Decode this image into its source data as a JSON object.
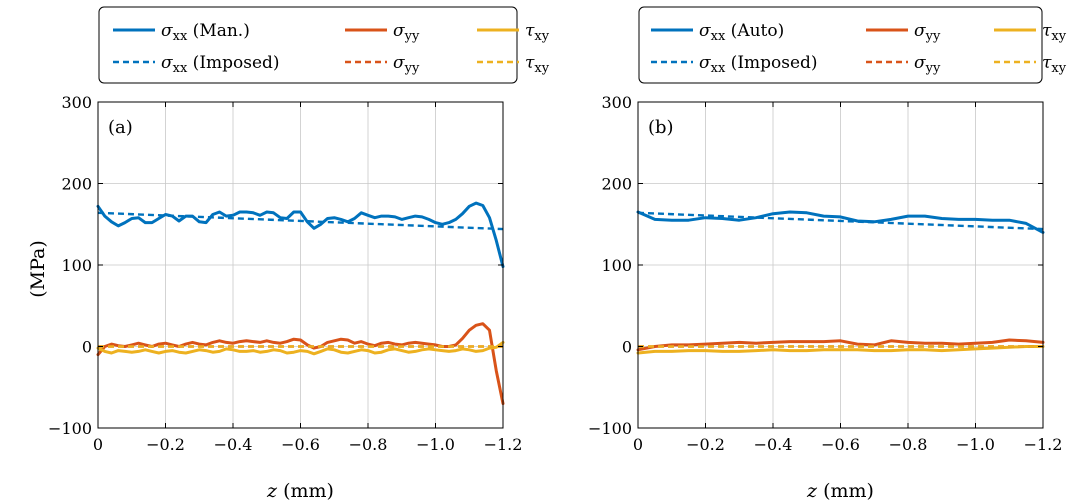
{
  "colors": {
    "sigma_xx": "#0072BD",
    "sigma_yy": "#D95319",
    "tau_xy": "#EDB120"
  },
  "shared_ylabel": "(MPa)",
  "chart_data": [
    {
      "type": "line",
      "panel_label": "(a)",
      "xlabel": {
        "var": "z",
        "unit": " (mm)"
      },
      "xlim": [
        0,
        -1.2
      ],
      "ylim": [
        -100,
        300
      ],
      "xticks": [
        "0",
        "−0.2",
        "−0.4",
        "−0.6",
        "−0.8",
        "−1.0",
        "−1.2"
      ],
      "yticks": [
        "−100",
        "0",
        "100",
        "200",
        "300"
      ],
      "xtick_values": [
        0,
        -0.2,
        -0.4,
        -0.6,
        -0.8,
        -1.0,
        -1.2
      ],
      "ytick_values": [
        -100,
        0,
        100,
        200,
        300
      ],
      "grid": true,
      "legend_position": "top",
      "series": [
        {
          "sym": "σ",
          "sub": "xx",
          "suffix": " (Man.)",
          "color_key": "sigma_xx",
          "dashed": false,
          "x": [
            0,
            -0.02,
            -0.04,
            -0.06,
            -0.08,
            -0.1,
            -0.12,
            -0.14,
            -0.16,
            -0.18,
            -0.2,
            -0.22,
            -0.24,
            -0.26,
            -0.28,
            -0.3,
            -0.32,
            -0.34,
            -0.36,
            -0.38,
            -0.4,
            -0.42,
            -0.44,
            -0.46,
            -0.48,
            -0.5,
            -0.52,
            -0.54,
            -0.56,
            -0.58,
            -0.6,
            -0.62,
            -0.64,
            -0.66,
            -0.68,
            -0.7,
            -0.72,
            -0.74,
            -0.76,
            -0.78,
            -0.8,
            -0.82,
            -0.84,
            -0.86,
            -0.88,
            -0.9,
            -0.92,
            -0.94,
            -0.96,
            -0.98,
            -1.0,
            -1.02,
            -1.04,
            -1.06,
            -1.08,
            -1.1,
            -1.12,
            -1.14,
            -1.16,
            -1.18,
            -1.2
          ],
          "y": [
            172,
            160,
            153,
            148,
            152,
            157,
            158,
            152,
            152,
            157,
            162,
            160,
            154,
            160,
            160,
            153,
            152,
            162,
            165,
            160,
            161,
            165,
            165,
            164,
            161,
            165,
            164,
            158,
            157,
            165,
            165,
            153,
            145,
            150,
            157,
            158,
            156,
            153,
            157,
            164,
            161,
            158,
            160,
            160,
            159,
            156,
            158,
            160,
            159,
            156,
            152,
            150,
            152,
            156,
            163,
            172,
            176,
            173,
            158,
            130,
            98
          ]
        },
        {
          "sym": "σ",
          "sub": "yy",
          "suffix": "",
          "color_key": "sigma_yy",
          "dashed": false,
          "x": [
            0,
            -0.02,
            -0.04,
            -0.06,
            -0.08,
            -0.1,
            -0.12,
            -0.14,
            -0.16,
            -0.18,
            -0.2,
            -0.22,
            -0.24,
            -0.26,
            -0.28,
            -0.3,
            -0.32,
            -0.34,
            -0.36,
            -0.38,
            -0.4,
            -0.42,
            -0.44,
            -0.46,
            -0.48,
            -0.5,
            -0.52,
            -0.54,
            -0.56,
            -0.58,
            -0.6,
            -0.62,
            -0.64,
            -0.66,
            -0.68,
            -0.7,
            -0.72,
            -0.74,
            -0.76,
            -0.78,
            -0.8,
            -0.82,
            -0.84,
            -0.86,
            -0.88,
            -0.9,
            -0.92,
            -0.94,
            -0.96,
            -0.98,
            -1.0,
            -1.02,
            -1.04,
            -1.06,
            -1.08,
            -1.1,
            -1.12,
            -1.14,
            -1.16,
            -1.18,
            -1.2
          ],
          "y": [
            -10,
            0,
            3,
            1,
            0,
            2,
            4,
            2,
            0,
            3,
            4,
            2,
            0,
            3,
            5,
            3,
            2,
            5,
            7,
            5,
            4,
            6,
            7,
            6,
            5,
            7,
            5,
            4,
            6,
            9,
            8,
            2,
            -2,
            0,
            5,
            7,
            9,
            8,
            4,
            6,
            3,
            1,
            4,
            5,
            3,
            2,
            4,
            5,
            4,
            3,
            2,
            0,
            0,
            2,
            10,
            20,
            26,
            28,
            20,
            -30,
            -70
          ]
        },
        {
          "sym": "τ",
          "sub": "xy",
          "suffix": "",
          "color_key": "tau_xy",
          "dashed": false,
          "x": [
            0,
            -0.02,
            -0.04,
            -0.06,
            -0.08,
            -0.1,
            -0.12,
            -0.14,
            -0.16,
            -0.18,
            -0.2,
            -0.22,
            -0.24,
            -0.26,
            -0.28,
            -0.3,
            -0.32,
            -0.34,
            -0.36,
            -0.38,
            -0.4,
            -0.42,
            -0.44,
            -0.46,
            -0.48,
            -0.5,
            -0.52,
            -0.54,
            -0.56,
            -0.58,
            -0.6,
            -0.62,
            -0.64,
            -0.66,
            -0.68,
            -0.7,
            -0.72,
            -0.74,
            -0.76,
            -0.78,
            -0.8,
            -0.82,
            -0.84,
            -0.86,
            -0.88,
            -0.9,
            -0.92,
            -0.94,
            -0.96,
            -0.98,
            -1.0,
            -1.02,
            -1.04,
            -1.06,
            -1.08,
            -1.1,
            -1.12,
            -1.14,
            -1.16,
            -1.18,
            -1.2
          ],
          "y": [
            -2,
            -6,
            -8,
            -5,
            -6,
            -7,
            -6,
            -4,
            -6,
            -8,
            -6,
            -5,
            -7,
            -8,
            -6,
            -4,
            -5,
            -7,
            -6,
            -3,
            -4,
            -6,
            -6,
            -5,
            -7,
            -6,
            -4,
            -5,
            -8,
            -7,
            -5,
            -6,
            -9,
            -6,
            -3,
            -4,
            -7,
            -8,
            -6,
            -4,
            -5,
            -8,
            -7,
            -4,
            -3,
            -5,
            -7,
            -6,
            -4,
            -3,
            -4,
            -5,
            -6,
            -5,
            -3,
            -4,
            -6,
            -5,
            -2,
            -1,
            5
          ]
        },
        {
          "sym": "σ",
          "sub": "xx",
          "suffix": " (Imposed)",
          "color_key": "sigma_xx",
          "dashed": true,
          "x": [
            0,
            -1.2
          ],
          "y": [
            164,
            144
          ]
        },
        {
          "sym": "σ",
          "sub": "yy",
          "suffix": "",
          "color_key": "sigma_yy",
          "dashed": true,
          "x": [
            0,
            -1.2
          ],
          "y": [
            0,
            0
          ]
        },
        {
          "sym": "τ",
          "sub": "xy",
          "suffix": "",
          "color_key": "tau_xy",
          "dashed": true,
          "x": [
            0,
            -1.2
          ],
          "y": [
            0,
            0
          ]
        }
      ]
    },
    {
      "type": "line",
      "panel_label": "(b)",
      "xlabel": {
        "var": "z",
        "unit": " (mm)"
      },
      "xlim": [
        0,
        -1.2
      ],
      "ylim": [
        -100,
        300
      ],
      "xticks": [
        "0",
        "−0.2",
        "−0.4",
        "−0.6",
        "−0.8",
        "−1.0",
        "−1.2"
      ],
      "yticks": [
        "−100",
        "0",
        "100",
        "200",
        "300"
      ],
      "xtick_values": [
        0,
        -0.2,
        -0.4,
        -0.6,
        -0.8,
        -1.0,
        -1.2
      ],
      "ytick_values": [
        -100,
        0,
        100,
        200,
        300
      ],
      "grid": true,
      "legend_position": "top",
      "series": [
        {
          "sym": "σ",
          "sub": "xx",
          "suffix": " (Auto)",
          "color_key": "sigma_xx",
          "dashed": false,
          "x": [
            0,
            -0.05,
            -0.1,
            -0.15,
            -0.2,
            -0.25,
            -0.3,
            -0.35,
            -0.4,
            -0.45,
            -0.5,
            -0.55,
            -0.6,
            -0.65,
            -0.7,
            -0.75,
            -0.8,
            -0.85,
            -0.9,
            -0.95,
            -1.0,
            -1.05,
            -1.1,
            -1.15,
            -1.2
          ],
          "y": [
            165,
            156,
            155,
            155,
            158,
            157,
            155,
            158,
            163,
            165,
            164,
            160,
            159,
            154,
            153,
            156,
            160,
            160,
            157,
            156,
            156,
            155,
            155,
            151,
            140
          ]
        },
        {
          "sym": "σ",
          "sub": "yy",
          "suffix": "",
          "color_key": "sigma_yy",
          "dashed": false,
          "x": [
            0,
            -0.05,
            -0.1,
            -0.15,
            -0.2,
            -0.25,
            -0.3,
            -0.35,
            -0.4,
            -0.45,
            -0.5,
            -0.55,
            -0.6,
            -0.65,
            -0.7,
            -0.75,
            -0.8,
            -0.85,
            -0.9,
            -0.95,
            -1.0,
            -1.05,
            -1.1,
            -1.15,
            -1.2
          ],
          "y": [
            -4,
            0,
            2,
            2,
            3,
            4,
            5,
            4,
            5,
            6,
            6,
            6,
            7,
            3,
            2,
            7,
            5,
            4,
            4,
            3,
            4,
            5,
            8,
            7,
            5
          ]
        },
        {
          "sym": "τ",
          "sub": "xy",
          "suffix": "",
          "color_key": "tau_xy",
          "dashed": false,
          "x": [
            0,
            -0.05,
            -0.1,
            -0.15,
            -0.2,
            -0.25,
            -0.3,
            -0.35,
            -0.4,
            -0.45,
            -0.5,
            -0.55,
            -0.6,
            -0.65,
            -0.7,
            -0.75,
            -0.8,
            -0.85,
            -0.9,
            -0.95,
            -1.0,
            -1.05,
            -1.1,
            -1.15,
            -1.2
          ],
          "y": [
            -8,
            -6,
            -6,
            -5,
            -5,
            -6,
            -6,
            -5,
            -4,
            -5,
            -5,
            -4,
            -4,
            -4,
            -5,
            -5,
            -4,
            -4,
            -5,
            -4,
            -3,
            -2,
            -1,
            0,
            0
          ]
        },
        {
          "sym": "σ",
          "sub": "xx",
          "suffix": " (Imposed)",
          "color_key": "sigma_xx",
          "dashed": true,
          "x": [
            0,
            -1.2
          ],
          "y": [
            164,
            144
          ]
        },
        {
          "sym": "σ",
          "sub": "yy",
          "suffix": "",
          "color_key": "sigma_yy",
          "dashed": true,
          "x": [
            0,
            -1.2
          ],
          "y": [
            0,
            0
          ]
        },
        {
          "sym": "τ",
          "sub": "xy",
          "suffix": "",
          "color_key": "tau_xy",
          "dashed": true,
          "x": [
            0,
            -1.2
          ],
          "y": [
            0,
            0
          ]
        }
      ]
    }
  ]
}
